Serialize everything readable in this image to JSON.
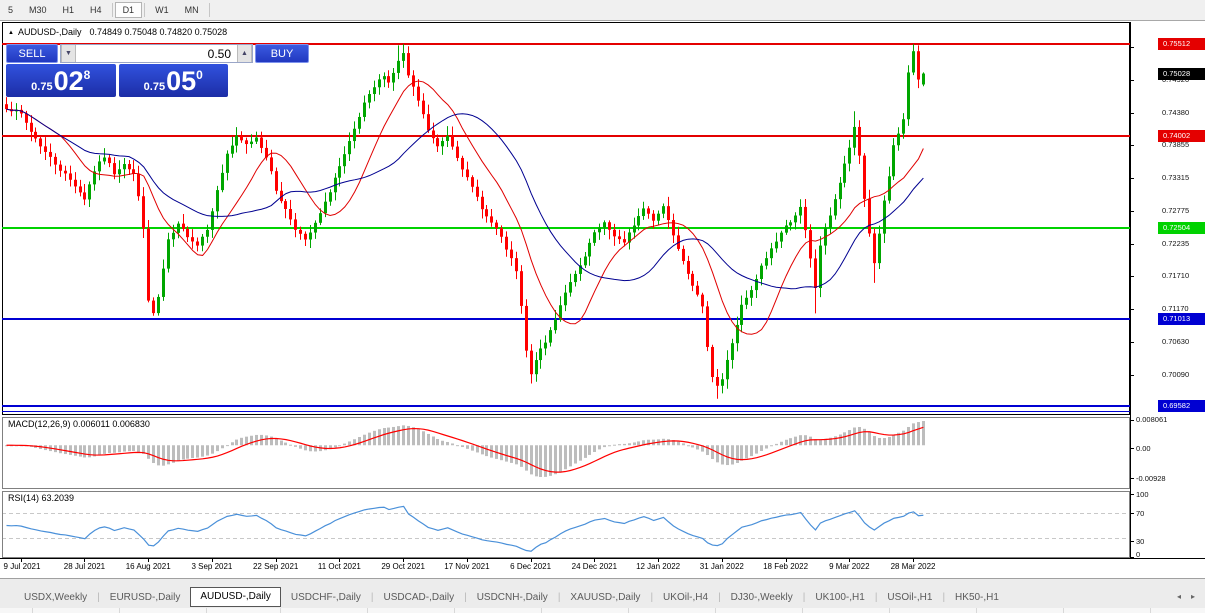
{
  "toolbar": {
    "periods": [
      {
        "label": "5",
        "active": false,
        "sep_after": false
      },
      {
        "label": "M30",
        "active": false,
        "sep_after": false
      },
      {
        "label": "H1",
        "active": false,
        "sep_after": false
      },
      {
        "label": "H4",
        "active": false,
        "sep_after": true
      },
      {
        "label": "D1",
        "active": true,
        "sep_after": true
      },
      {
        "label": "W1",
        "active": false,
        "sep_after": false
      },
      {
        "label": "MN",
        "active": false,
        "sep_after": true
      }
    ]
  },
  "chart": {
    "symbol_title": "AUDUSD-,Daily",
    "ohlc_text": "0.74849 0.75048 0.74820 0.75028",
    "collapse_arrow": "▲",
    "trade_panel": {
      "sell_label": "SELL",
      "buy_label": "BUY",
      "volume": "0.50",
      "spinner_down": "▼",
      "spinner_up": "▲",
      "sell_price": {
        "prefix": "0.75",
        "big": "02",
        "sup": "8"
      },
      "buy_price": {
        "prefix": "0.75",
        "big": "05",
        "sup": "0"
      }
    }
  },
  "chart_data": {
    "type": "candlestick",
    "symbol": "AUDUSD-,Daily",
    "title": "AUDUSD-,Daily",
    "last_ohlc": {
      "open": 0.74849,
      "high": 0.75048,
      "low": 0.7482,
      "close": 0.75028
    },
    "current_price": {
      "label": "0.75028",
      "color": "#000000"
    },
    "colors": {
      "up": "#00a600",
      "down": "#ff0000",
      "ma_fast": "#e00000",
      "ma_slow": "#000090",
      "macd_hist": "#bdbdbd",
      "macd_signal": "#ff0000",
      "rsi_line": "#4a90d9",
      "level_dash": "#c8c8c8"
    },
    "y_ticks": [
      "0.75460",
      "0.74920",
      "0.74380",
      "0.73855",
      "0.73315",
      "0.72775",
      "0.72235",
      "0.71710",
      "0.71170",
      "0.70630",
      "0.70090"
    ],
    "levels": [
      {
        "label": "0.75512",
        "color": "#e40000",
        "width": 2,
        "badge": true
      },
      {
        "label": "0.74002",
        "color": "#e40000",
        "width": 2,
        "badge": true
      },
      {
        "label": "0.72504",
        "color": "#00d200",
        "width": 2,
        "badge": true
      },
      {
        "label": "0.71013",
        "color": "#0000d2",
        "width": 2,
        "badge": true
      },
      {
        "label": "0.69582",
        "color": "#0000d2",
        "width": 2,
        "badge": true
      },
      {
        "label": "0.69500",
        "color": "#0000d2",
        "width": 1,
        "badge": false
      }
    ],
    "x_labels": [
      "9 Jul 2021",
      "28 Jul 2021",
      "16 Aug 2021",
      "3 Sep 2021",
      "22 Sep 2021",
      "11 Oct 2021",
      "29 Oct 2021",
      "17 Nov 2021",
      "6 Dec 2021",
      "24 Dec 2021",
      "12 Jan 2022",
      "31 Jan 2022",
      "18 Feb 2022",
      "9 Mar 2022",
      "28 Mar 2022"
    ],
    "x_label_indices": [
      3,
      16,
      29,
      42,
      55,
      68,
      81,
      94,
      107,
      120,
      133,
      146,
      159,
      172,
      185
    ],
    "candle_count": 188,
    "close_anchors": [
      [
        0,
        0.7448
      ],
      [
        3,
        0.7436
      ],
      [
        5,
        0.7408
      ],
      [
        8,
        0.7374
      ],
      [
        11,
        0.7346
      ],
      [
        14,
        0.732
      ],
      [
        16,
        0.7298
      ],
      [
        18,
        0.7344
      ],
      [
        20,
        0.7367
      ],
      [
        22,
        0.734
      ],
      [
        24,
        0.7357
      ],
      [
        26,
        0.7338
      ],
      [
        27,
        0.73
      ],
      [
        28,
        0.7252
      ],
      [
        29,
        0.7128
      ],
      [
        30,
        0.711
      ],
      [
        31,
        0.7136
      ],
      [
        33,
        0.7228
      ],
      [
        35,
        0.7254
      ],
      [
        37,
        0.7238
      ],
      [
        39,
        0.7222
      ],
      [
        41,
        0.725
      ],
      [
        43,
        0.731
      ],
      [
        45,
        0.7372
      ],
      [
        47,
        0.7398
      ],
      [
        49,
        0.7386
      ],
      [
        51,
        0.7399
      ],
      [
        53,
        0.7368
      ],
      [
        55,
        0.7312
      ],
      [
        57,
        0.728
      ],
      [
        59,
        0.725
      ],
      [
        61,
        0.7228
      ],
      [
        63,
        0.7256
      ],
      [
        65,
        0.729
      ],
      [
        67,
        0.7332
      ],
      [
        69,
        0.7368
      ],
      [
        71,
        0.741
      ],
      [
        73,
        0.7452
      ],
      [
        75,
        0.748
      ],
      [
        77,
        0.7502
      ],
      [
        78,
        0.7488
      ],
      [
        80,
        0.7522
      ],
      [
        81,
        0.7536
      ],
      [
        82,
        0.7498
      ],
      [
        84,
        0.7458
      ],
      [
        86,
        0.741
      ],
      [
        88,
        0.7382
      ],
      [
        90,
        0.7402
      ],
      [
        92,
        0.7368
      ],
      [
        94,
        0.733
      ],
      [
        96,
        0.73
      ],
      [
        98,
        0.7268
      ],
      [
        100,
        0.7248
      ],
      [
        102,
        0.7216
      ],
      [
        104,
        0.7178
      ],
      [
        105,
        0.712
      ],
      [
        106,
        0.7048
      ],
      [
        107,
        0.7008
      ],
      [
        108,
        0.7036
      ],
      [
        110,
        0.7062
      ],
      [
        112,
        0.7102
      ],
      [
        114,
        0.7146
      ],
      [
        116,
        0.7172
      ],
      [
        118,
        0.7202
      ],
      [
        120,
        0.7242
      ],
      [
        122,
        0.7256
      ],
      [
        124,
        0.7238
      ],
      [
        126,
        0.7224
      ],
      [
        128,
        0.7256
      ],
      [
        130,
        0.7282
      ],
      [
        132,
        0.7264
      ],
      [
        134,
        0.7286
      ],
      [
        136,
        0.724
      ],
      [
        138,
        0.7198
      ],
      [
        140,
        0.7158
      ],
      [
        142,
        0.7118
      ],
      [
        143,
        0.7058
      ],
      [
        144,
        0.7008
      ],
      [
        145,
        0.6992
      ],
      [
        146,
        0.7002
      ],
      [
        148,
        0.7062
      ],
      [
        150,
        0.7122
      ],
      [
        152,
        0.7146
      ],
      [
        154,
        0.7186
      ],
      [
        156,
        0.7216
      ],
      [
        158,
        0.7242
      ],
      [
        160,
        0.7262
      ],
      [
        162,
        0.7282
      ],
      [
        163,
        0.7244
      ],
      [
        164,
        0.7198
      ],
      [
        165,
        0.7152
      ],
      [
        166,
        0.7222
      ],
      [
        168,
        0.7272
      ],
      [
        170,
        0.7324
      ],
      [
        172,
        0.7382
      ],
      [
        173,
        0.7412
      ],
      [
        174,
        0.7368
      ],
      [
        175,
        0.7298
      ],
      [
        176,
        0.7242
      ],
      [
        177,
        0.7192
      ],
      [
        178,
        0.7242
      ],
      [
        179,
        0.7292
      ],
      [
        180,
        0.7334
      ],
      [
        181,
        0.7382
      ],
      [
        182,
        0.7402
      ],
      [
        183,
        0.7428
      ],
      [
        184,
        0.7505
      ],
      [
        185,
        0.7538
      ],
      [
        186,
        0.749
      ],
      [
        187,
        0.75028
      ]
    ],
    "extremes": [
      {
        "i": 30,
        "low": 0.7106
      },
      {
        "i": 80,
        "high": 0.7549
      },
      {
        "i": 81,
        "high": 0.7551
      },
      {
        "i": 107,
        "low": 0.6995
      },
      {
        "i": 145,
        "low": 0.697
      },
      {
        "i": 165,
        "low": 0.711
      },
      {
        "i": 173,
        "high": 0.7441
      },
      {
        "i": 177,
        "low": 0.716
      },
      {
        "i": 185,
        "high": 0.7551
      },
      {
        "i": 186,
        "high": 0.7549
      }
    ],
    "ma": [
      {
        "period": 12,
        "colorKey": "ma_fast"
      },
      {
        "period": 26,
        "colorKey": "ma_slow"
      }
    ],
    "macd": {
      "label": "MACD(12,26,9) 0.006011 0.006830",
      "main": 0.006011,
      "signal": 0.00683,
      "axis_labels": [
        "0.008061",
        "0.00",
        "-0.00928"
      ],
      "fast": 12,
      "slow": 26,
      "smoothing": 9
    },
    "rsi": {
      "label": "RSI(14) 63.2039",
      "value": 63.2039,
      "period": 14,
      "axis_labels": [
        "100",
        "70",
        "30",
        "0"
      ],
      "level_lines": [
        70,
        30
      ]
    }
  },
  "tabs": {
    "items": [
      {
        "label": "USDX,Weekly",
        "active": false
      },
      {
        "label": "EURUSD-,Daily",
        "active": false
      },
      {
        "label": "AUDUSD-,Daily",
        "active": true
      },
      {
        "label": "USDCHF-,Daily",
        "active": false
      },
      {
        "label": "USDCAD-,Daily",
        "active": false
      },
      {
        "label": "USDCNH-,Daily",
        "active": false
      },
      {
        "label": "XAUUSD-,Daily",
        "active": false
      },
      {
        "label": "UKOil-,H4",
        "active": false
      },
      {
        "label": "DJ30-,Weekly",
        "active": false
      },
      {
        "label": "UK100-,H1",
        "active": false
      },
      {
        "label": "USOil-,H1",
        "active": false
      },
      {
        "label": "HK50-,H1",
        "active": false
      }
    ],
    "scroll_left": "◂",
    "scroll_right": "▸"
  }
}
